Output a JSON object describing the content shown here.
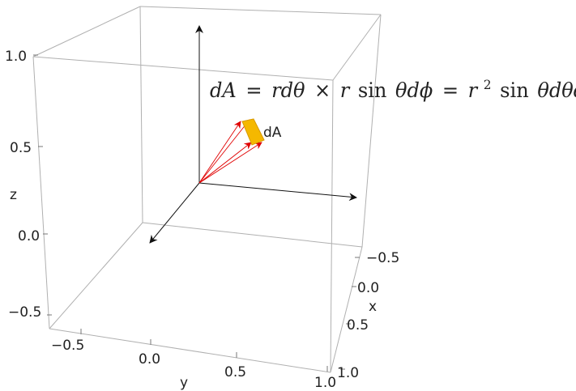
{
  "plot": {
    "equation": {
      "lhs": "dA",
      "eq1": "=",
      "t1": "rdθ",
      "times": "×",
      "t2a": "r",
      "sin1": "sin",
      "t2b": "θdϕ",
      "eq2": "=",
      "r": "r",
      "exp": "2",
      "sin2": "sin",
      "t3": "θdθdϕ"
    },
    "patch_label": "dA",
    "axis_labels": {
      "x": "x",
      "y": "y",
      "z": "z"
    },
    "z_ticks": [
      "1.0",
      "0.5",
      "0.0",
      "−0.5"
    ],
    "y_ticks": [
      "−0.5",
      "0.0",
      "0.5",
      "1.0"
    ],
    "x_ticks": [
      "−0.5",
      "0.0",
      "0.5",
      "1.0"
    ],
    "colors": {
      "box": "#b0b0b0",
      "axes_arrows": "#111111",
      "vectors": "#e00000",
      "patch": "#f5b800",
      "patch_edge": "#d89a00"
    }
  }
}
